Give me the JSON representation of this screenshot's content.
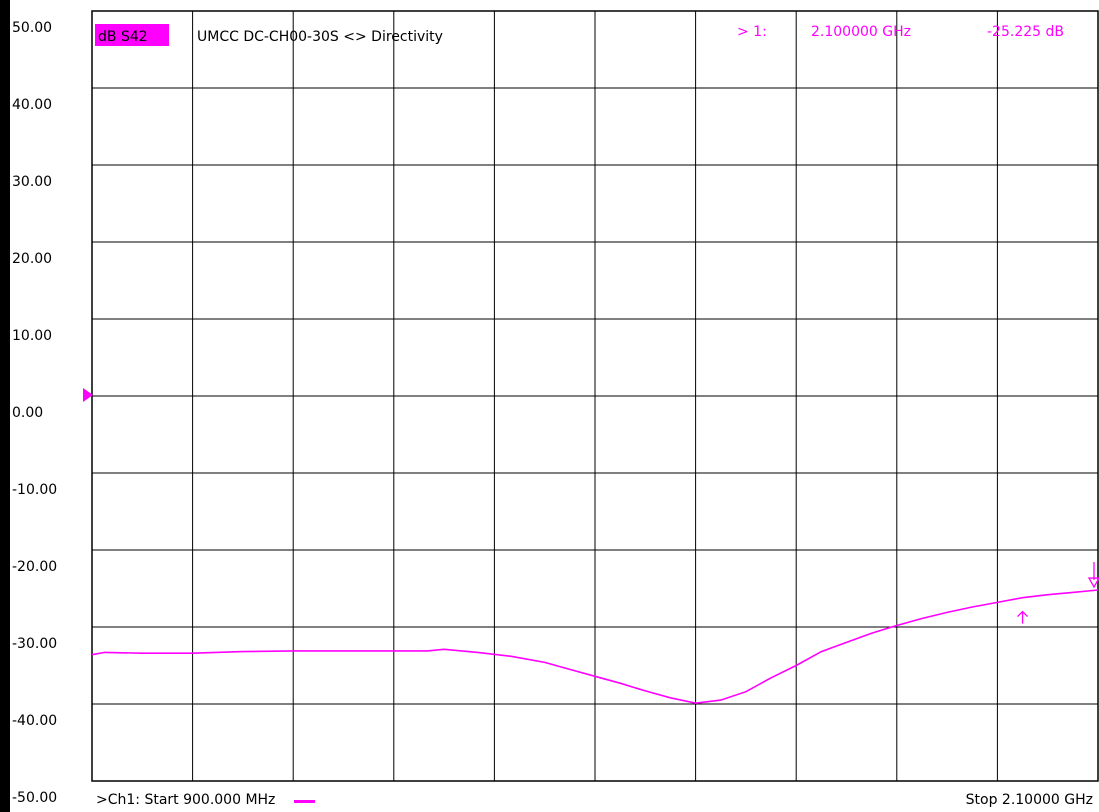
{
  "chart_data": {
    "type": "line",
    "trace_label": "dB S42",
    "title": "UMCC  DC-CH00-30S <> Directivity",
    "marker_readout": {
      "index": "> 1:",
      "frequency": "2.100000 GHz",
      "value": "-25.225 dB"
    },
    "ylim": [
      -50,
      50
    ],
    "ytick_labels": [
      "50.00",
      "40.00",
      "30.00",
      "20.00",
      "10.00",
      "0.00",
      "-10.00",
      "-20.00",
      "-30.00",
      "-40.00",
      "-50.00"
    ],
    "reference_level": 0,
    "xlim": [
      900,
      2100
    ],
    "x_unit": "MHz",
    "x_divisions": 10,
    "grid": true,
    "start_label": ">Ch1: Start  900.000 MHz",
    "stop_label": "Stop  2.10000 GHz",
    "series": [
      {
        "color": "#ff00ff",
        "x": [
          900,
          915,
          960,
          1020,
          1080,
          1140,
          1200,
          1260,
          1300,
          1320,
          1360,
          1400,
          1440,
          1470,
          1500,
          1530,
          1560,
          1590,
          1620,
          1650,
          1680,
          1710,
          1740,
          1770,
          1800,
          1830,
          1860,
          1890,
          1920,
          1950,
          1980,
          2010,
          2040,
          2070,
          2100
        ],
        "y": [
          -33.6,
          -33.3,
          -33.4,
          -33.4,
          -33.2,
          -33.1,
          -33.1,
          -33.1,
          -33.1,
          -32.9,
          -33.3,
          -33.8,
          -34.6,
          -35.5,
          -36.4,
          -37.3,
          -38.3,
          -39.2,
          -39.9,
          -39.5,
          -38.4,
          -36.6,
          -35.0,
          -33.2,
          -32.0,
          -30.8,
          -29.8,
          -28.9,
          -28.1,
          -27.4,
          -26.8,
          -26.2,
          -25.8,
          -25.5,
          -25.2
        ]
      }
    ],
    "marker": {
      "x": 2010,
      "y": -28.0
    }
  }
}
